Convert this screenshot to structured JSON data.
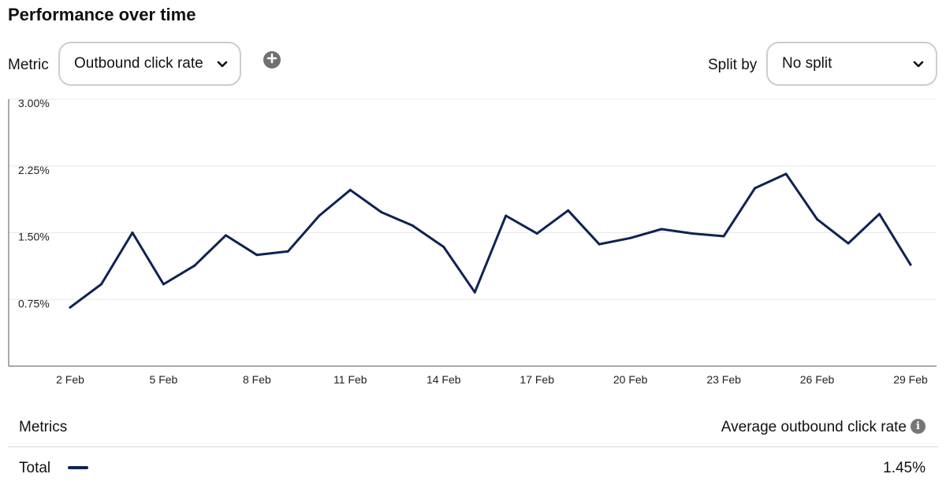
{
  "page": {
    "title": "Performance over time"
  },
  "controls": {
    "metric_label": "Metric",
    "metric_value": "Outbound click rate",
    "split_label": "Split by",
    "split_value": "No split"
  },
  "icons": {
    "add": "plus-circle-icon",
    "dropdown": "chevron-down-icon",
    "info": "info-icon"
  },
  "colors": {
    "line": "#0e2354",
    "axis": "#555555",
    "grid": "#e8e8e8",
    "control_border": "#cdcdcd"
  },
  "chart_data": {
    "type": "line",
    "title": "",
    "xlabel": "",
    "ylabel": "",
    "ylim": [
      0,
      3.0
    ],
    "y_ticks": [
      0.75,
      1.5,
      2.25,
      3.0
    ],
    "y_tick_labels": [
      "0.75%",
      "1.50%",
      "2.25%",
      "3.00%"
    ],
    "x_ticks": [
      "2 Feb",
      "5 Feb",
      "8 Feb",
      "11 Feb",
      "14 Feb",
      "17 Feb",
      "20 Feb",
      "23 Feb",
      "26 Feb",
      "29 Feb"
    ],
    "x": [
      "2 Feb",
      "3 Feb",
      "4 Feb",
      "5 Feb",
      "6 Feb",
      "7 Feb",
      "8 Feb",
      "9 Feb",
      "10 Feb",
      "11 Feb",
      "12 Feb",
      "13 Feb",
      "14 Feb",
      "15 Feb",
      "16 Feb",
      "17 Feb",
      "18 Feb",
      "19 Feb",
      "20 Feb",
      "21 Feb",
      "22 Feb",
      "23 Feb",
      "24 Feb",
      "25 Feb",
      "26 Feb",
      "27 Feb",
      "28 Feb",
      "29 Feb"
    ],
    "series": [
      {
        "values": [
          0.66,
          0.92,
          1.5,
          0.92,
          1.13,
          1.47,
          1.25,
          1.29,
          1.69,
          1.98,
          1.73,
          1.58,
          1.34,
          0.83,
          1.69,
          1.49,
          1.75,
          1.37,
          1.44,
          1.54,
          1.49,
          1.46,
          2.0,
          2.16,
          1.65,
          1.38,
          1.71,
          1.14
        ]
      }
    ],
    "grid": true,
    "legend": "none"
  },
  "metrics_table": {
    "header_left": "Metrics",
    "header_right": "Average outbound click rate",
    "row_label": "Total",
    "row_value": "1.45%"
  }
}
